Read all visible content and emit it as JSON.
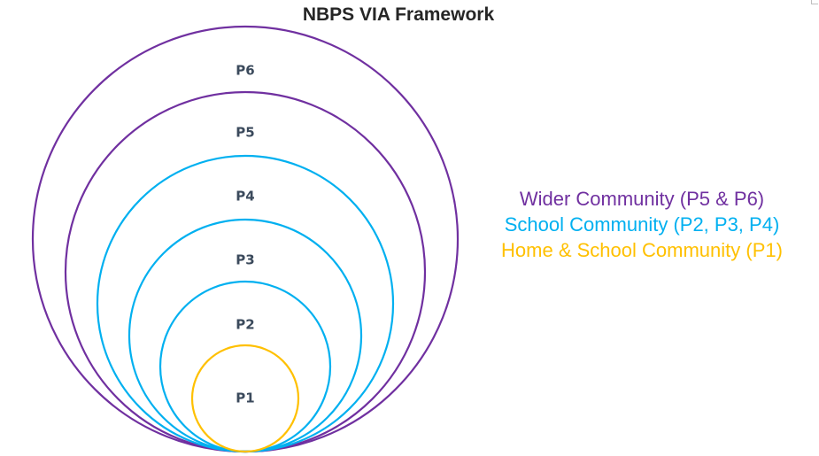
{
  "title": "NBPS VIA Framework",
  "colors": {
    "wider": "#7030A0",
    "school": "#00B0F0",
    "home": "#FFC000",
    "label": "#3b4a5c"
  },
  "rings": [
    {
      "label": "P6",
      "color": "wider"
    },
    {
      "label": "P5",
      "color": "wider"
    },
    {
      "label": "P4",
      "color": "school"
    },
    {
      "label": "P3",
      "color": "school"
    },
    {
      "label": "P2",
      "color": "school"
    },
    {
      "label": "P1",
      "color": "home"
    }
  ],
  "legend": [
    {
      "text": "Wider Community (P5 & P6)",
      "color": "wider"
    },
    {
      "text": "School Community (P2, P3, P4)",
      "color": "school"
    },
    {
      "text": "Home & School Community (P1)",
      "color": "home"
    }
  ]
}
